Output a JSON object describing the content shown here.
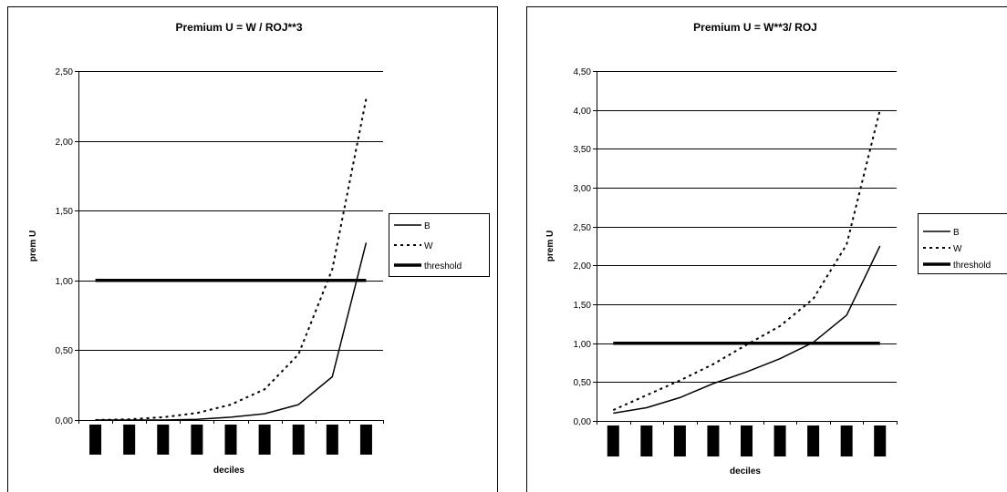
{
  "chart_data": [
    {
      "type": "line",
      "title": "Premium U = W / ROJ**3",
      "xlabel": "deciles",
      "ylabel": "prem U",
      "ylim": [
        0,
        2.5
      ],
      "yticks": [
        "0,00",
        "0,50",
        "1,00",
        "1,50",
        "2,00",
        "2,50"
      ],
      "x": [
        1,
        2,
        3,
        4,
        5,
        6,
        7,
        8,
        9
      ],
      "legend_position": "right",
      "grid": "horizontal",
      "series": [
        {
          "name": "B",
          "style": "solid",
          "values": [
            0.0,
            0.0,
            0.0,
            0.005,
            0.02,
            0.045,
            0.11,
            0.31,
            1.27
          ]
        },
        {
          "name": "W",
          "style": "dotted",
          "values": [
            0.0,
            0.005,
            0.02,
            0.05,
            0.11,
            0.22,
            0.47,
            1.08,
            2.3
          ]
        },
        {
          "name": "threshold",
          "style": "thick",
          "values": [
            1,
            1,
            1,
            1,
            1,
            1,
            1,
            1,
            1
          ]
        }
      ]
    },
    {
      "type": "line",
      "title": "Premium U = W**3/ ROJ",
      "xlabel": "deciles",
      "ylabel": "prem U",
      "ylim": [
        0,
        4.5
      ],
      "yticks": [
        "0,00",
        "0,50",
        "1,00",
        "1,50",
        "2,00",
        "2,50",
        "3,00",
        "3,50",
        "4,00",
        "4,50"
      ],
      "x": [
        1,
        2,
        3,
        4,
        5,
        6,
        7,
        8,
        9
      ],
      "legend_position": "right",
      "grid": "horizontal",
      "series": [
        {
          "name": "B",
          "style": "solid",
          "values": [
            0.1,
            0.17,
            0.3,
            0.48,
            0.63,
            0.8,
            1.01,
            1.36,
            2.25
          ]
        },
        {
          "name": "W",
          "style": "dotted",
          "values": [
            0.14,
            0.33,
            0.52,
            0.73,
            0.98,
            1.22,
            1.57,
            2.27,
            4.0
          ]
        },
        {
          "name": "threshold",
          "style": "thick",
          "values": [
            1,
            1,
            1,
            1,
            1,
            1,
            1,
            1,
            1
          ]
        }
      ]
    }
  ]
}
